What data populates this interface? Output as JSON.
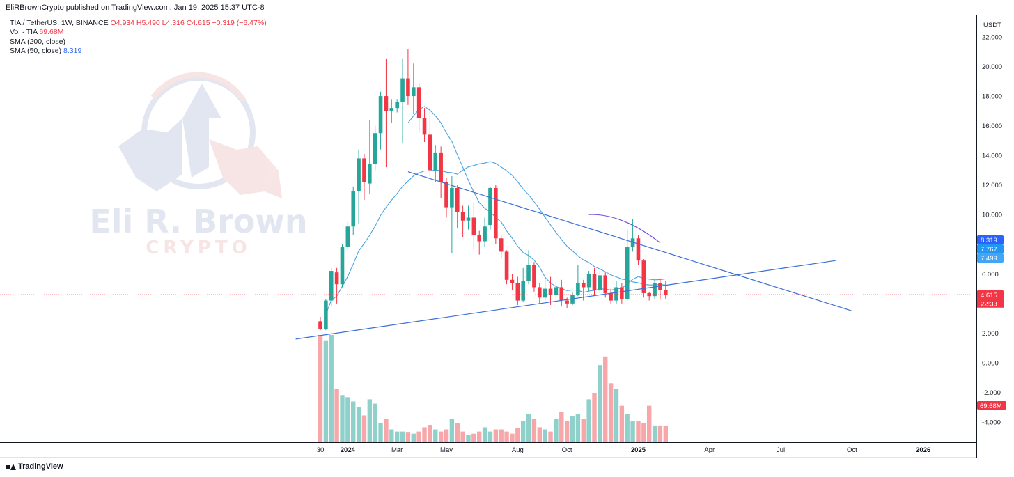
{
  "header": {
    "published": "EliRBrownCrypto published on TradingView.com, Jan 19, 2025 15:37 UTC-8"
  },
  "legend": {
    "symbol": "TIA / TetherUS, 1W, BINANCE",
    "ohlc": "O4.934 H5.490 L4.316 C4.615 −0.319 (−6.47%)",
    "vol_label": "Vol · TIA",
    "vol_value": "69.68M",
    "sma200_label": "SMA (200, close)",
    "sma50_label": "SMA (50, close)",
    "sma50_value": "8.319"
  },
  "watermark": {
    "line1": "Eli R. Brown",
    "line2": "CRYPTO"
  },
  "footer": {
    "brand": "TradingView"
  },
  "colors": {
    "up": "#26a69a",
    "down": "#f23645",
    "vol_up": "#8fd1ca",
    "vol_down": "#f7a6a9",
    "line": "#3a6fd8",
    "sma": "#4aa3df",
    "grid": "#ffffff",
    "axis": "#131722"
  },
  "chart_data": {
    "type": "candlestick",
    "interval": "1W",
    "currency_label": "USDT",
    "y_ticks": [
      "22.000",
      "20.000",
      "18.000",
      "16.000",
      "14.000",
      "12.000",
      "10.000",
      "8.000",
      "6.000",
      "4.000",
      "2.000",
      "0.000",
      "-2.000",
      "-4.000"
    ],
    "x_ticks": [
      {
        "label": "30",
        "i": 0
      },
      {
        "label": "2024",
        "i": 5
      },
      {
        "label": "Mar",
        "i": 14
      },
      {
        "label": "May",
        "i": 23
      },
      {
        "label": "Aug",
        "i": 36
      },
      {
        "label": "Oct",
        "i": 45
      },
      {
        "label": "2025",
        "i": 58
      },
      {
        "label": "Apr",
        "i": 71
      },
      {
        "label": "Jul",
        "i": 84
      },
      {
        "label": "Oct",
        "i": 97
      },
      {
        "label": "2026",
        "i": 110
      }
    ],
    "ylim": [
      -5.3,
      22.8
    ],
    "candles": [
      [
        2.8,
        2.3,
        3.1,
        2.2
      ],
      [
        2.3,
        4.2,
        4.3,
        2.2
      ],
      [
        4.2,
        6.2,
        6.4,
        3.8
      ],
      [
        6.1,
        5.3,
        6.4,
        4.0
      ],
      [
        5.3,
        7.8,
        8.0,
        5.1
      ],
      [
        7.8,
        9.2,
        9.5,
        7.6
      ],
      [
        9.2,
        11.6,
        11.9,
        8.6
      ],
      [
        11.6,
        13.8,
        14.4,
        9.4
      ],
      [
        13.8,
        12.2,
        14.1,
        11.0
      ],
      [
        12.1,
        13.4,
        16.4,
        11.4
      ],
      [
        13.4,
        15.5,
        16.0,
        13.0
      ],
      [
        15.5,
        18.0,
        18.3,
        14.4
      ],
      [
        18.0,
        17.0,
        20.5,
        13.2
      ],
      [
        17.0,
        17.2,
        17.8,
        16.2
      ],
      [
        17.2,
        17.6,
        17.8,
        16.9
      ],
      [
        17.6,
        19.2,
        20.5,
        14.8
      ],
      [
        19.2,
        18.0,
        21.2,
        17.4
      ],
      [
        18.0,
        18.6,
        20.2,
        16.8
      ],
      [
        18.6,
        16.5,
        18.9,
        15.6
      ],
      [
        16.5,
        15.4,
        17.2,
        14.9
      ],
      [
        15.4,
        13.0,
        17.2,
        12.6
      ],
      [
        13.0,
        14.2,
        14.7,
        12.2
      ],
      [
        14.2,
        12.2,
        14.6,
        11.1
      ],
      [
        12.2,
        10.5,
        12.5,
        9.8
      ],
      [
        10.5,
        11.8,
        12.6,
        7.4
      ],
      [
        11.8,
        10.2,
        12.0,
        9.1
      ],
      [
        10.2,
        9.6,
        10.6,
        8.5
      ],
      [
        9.6,
        9.8,
        10.6,
        9.0
      ],
      [
        9.8,
        8.6,
        10.8,
        7.7
      ],
      [
        8.6,
        8.2,
        8.9,
        7.3
      ],
      [
        8.2,
        9.2,
        9.8,
        7.8
      ],
      [
        9.3,
        11.8,
        11.9,
        9.0
      ],
      [
        11.8,
        8.4,
        12.0,
        8.0
      ],
      [
        8.4,
        7.5,
        8.6,
        7.1
      ],
      [
        7.5,
        5.6,
        7.6,
        5.3
      ],
      [
        5.6,
        5.4,
        6.0,
        4.9
      ],
      [
        5.4,
        4.2,
        5.8,
        3.9
      ],
      [
        4.2,
        5.5,
        6.4,
        4.1
      ],
      [
        5.5,
        6.6,
        7.6,
        5.3
      ],
      [
        6.6,
        5.1,
        6.8,
        4.8
      ],
      [
        5.1,
        4.4,
        5.4,
        4.0
      ],
      [
        4.4,
        5.0,
        5.8,
        4.2
      ],
      [
        5.0,
        4.6,
        5.8,
        3.9
      ],
      [
        4.6,
        5.1,
        5.5,
        4.3
      ],
      [
        5.1,
        4.2,
        5.6,
        3.8
      ],
      [
        4.2,
        4.0,
        4.4,
        3.7
      ],
      [
        4.0,
        4.6,
        4.8,
        3.9
      ],
      [
        4.6,
        5.4,
        6.6,
        4.5
      ],
      [
        5.4,
        5.1,
        5.6,
        4.2
      ],
      [
        5.1,
        6.0,
        6.2,
        4.8
      ],
      [
        6.0,
        4.9,
        6.4,
        4.6
      ],
      [
        4.9,
        5.9,
        6.2,
        4.7
      ],
      [
        5.9,
        4.7,
        6.1,
        4.4
      ],
      [
        4.7,
        4.2,
        5.0,
        4.0
      ],
      [
        4.2,
        5.1,
        5.5,
        4.0
      ],
      [
        5.1,
        4.3,
        5.4,
        4.0
      ],
      [
        4.3,
        7.8,
        9.0,
        4.2
      ],
      [
        7.8,
        8.4,
        9.7,
        7.5
      ],
      [
        8.4,
        6.9,
        8.6,
        6.6
      ],
      [
        6.9,
        4.7,
        7.0,
        4.4
      ],
      [
        4.7,
        4.5,
        4.8,
        4.2
      ],
      [
        4.5,
        5.4,
        5.6,
        4.3
      ],
      [
        5.4,
        4.9,
        5.7,
        4.3
      ],
      [
        4.9,
        4.6,
        5.5,
        4.3
      ]
    ],
    "volume_heights_px": [],
    "trendlines": [
      {
        "name": "support",
        "from": {
          "i": -4.5,
          "y": 1.6
        },
        "to": {
          "i": 94,
          "y": 6.9
        }
      },
      {
        "name": "resistance",
        "from": {
          "i": 16,
          "y": 12.9
        },
        "to": {
          "i": 97,
          "y": 3.5
        }
      }
    ]
  }
}
